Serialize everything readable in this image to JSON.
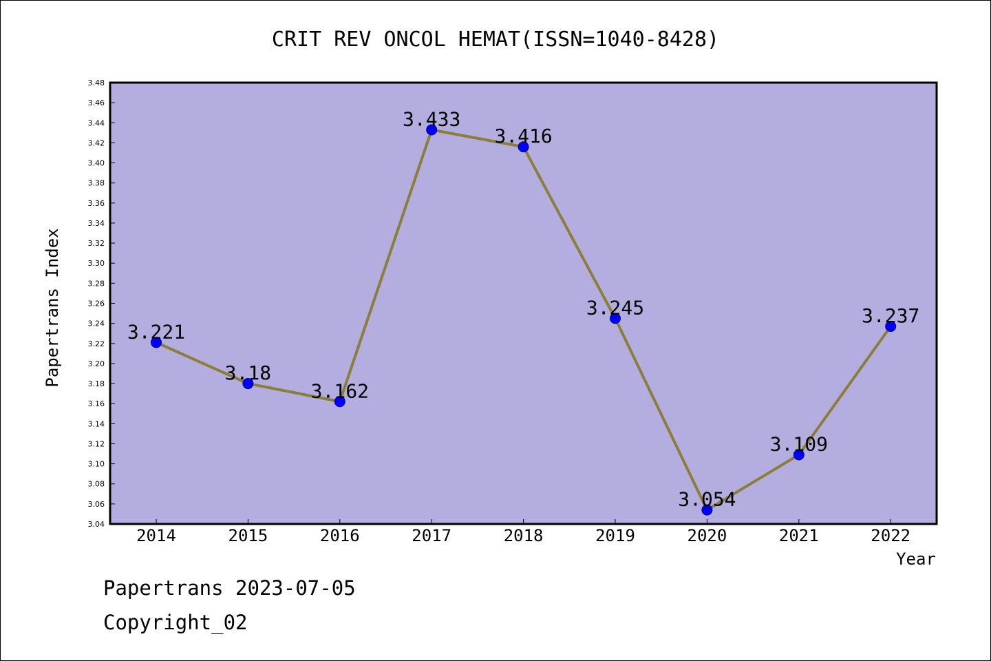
{
  "chart_data": {
    "type": "line",
    "title": "CRIT REV ONCOL HEMAT(ISSN=1040-8428)",
    "xlabel": "Year",
    "ylabel": "Papertrans Index",
    "categories": [
      "2014",
      "2015",
      "2016",
      "2017",
      "2018",
      "2019",
      "2020",
      "2021",
      "2022"
    ],
    "series": [
      {
        "values": [
          3.221,
          3.18,
          3.162,
          3.433,
          3.416,
          3.245,
          3.054,
          3.109,
          3.237
        ],
        "labels": [
          "3.221",
          "3.18",
          "3.162",
          "3.433",
          "3.416",
          "3.245",
          "3.054",
          "3.109",
          "3.237"
        ]
      }
    ],
    "ylim": [
      3.04,
      3.48
    ],
    "ytick_step": 0.02,
    "yticks": [
      "3.04",
      "3.06",
      "3.08",
      "3.10",
      "3.12",
      "3.14",
      "3.16",
      "3.18",
      "3.20",
      "3.22",
      "3.24",
      "3.26",
      "3.28",
      "3.30",
      "3.32",
      "3.34",
      "3.36",
      "3.38",
      "3.40",
      "3.42",
      "3.44",
      "3.46",
      "3.48"
    ],
    "grid": false,
    "legend": "none",
    "colors": {
      "plot_background": "#b4aee0",
      "line": "#8b7d3a",
      "marker": "#0000ff",
      "marker_edge": "#00008b"
    }
  },
  "footer": {
    "line1": "Papertrans 2023-07-05",
    "line2": "Copyright_02"
  }
}
